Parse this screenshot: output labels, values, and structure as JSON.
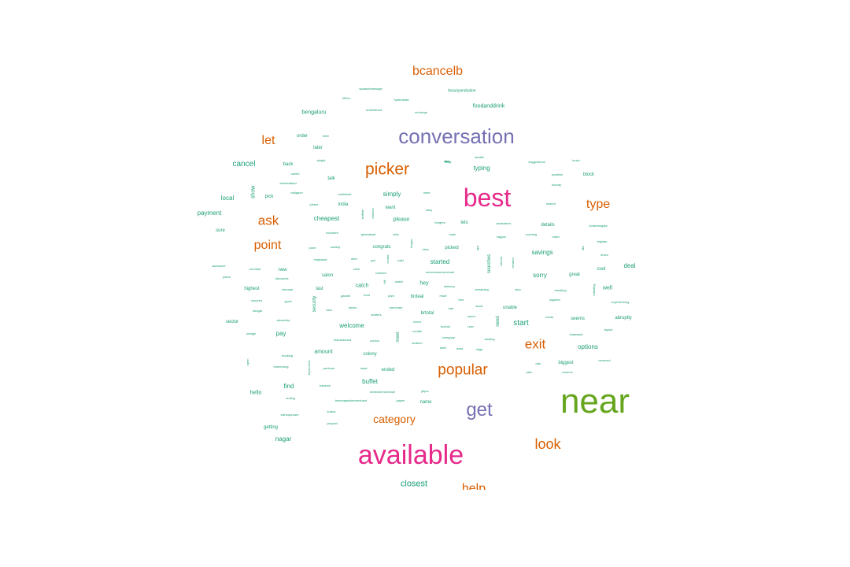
{
  "colors": {
    "teal": "#1b9e77",
    "orange": "#d95f02",
    "purple": "#7570b3",
    "magenta": "#e7298a",
    "green": "#66a61e",
    "gold": "#e6ab02"
  },
  "words": [
    {
      "text": "near",
      "color": "green"
    },
    {
      "text": "available",
      "color": "magenta"
    },
    {
      "text": "best",
      "color": "magenta"
    },
    {
      "text": "conversation",
      "color": "purple"
    },
    {
      "text": "get",
      "color": "purple"
    },
    {
      "text": "picker",
      "color": "orange"
    },
    {
      "text": "popular",
      "color": "orange"
    },
    {
      "text": "bcancelb",
      "color": "orange"
    },
    {
      "text": "category",
      "color": "orange"
    },
    {
      "text": "look",
      "color": "orange"
    },
    {
      "text": "help",
      "color": "orange"
    },
    {
      "text": "exit",
      "color": "orange"
    },
    {
      "text": "type",
      "color": "orange"
    },
    {
      "text": "ask",
      "color": "orange"
    },
    {
      "text": "point",
      "color": "orange"
    },
    {
      "text": "let",
      "color": "orange"
    },
    {
      "text": "closest",
      "color": "teal"
    },
    {
      "text": "cancel",
      "color": "teal"
    },
    {
      "text": "local",
      "color": "teal"
    },
    {
      "text": "payment",
      "color": "teal"
    },
    {
      "text": "sure",
      "color": "teal"
    },
    {
      "text": "cheapest",
      "color": "teal"
    },
    {
      "text": "simply",
      "color": "teal"
    },
    {
      "text": "typing",
      "color": "teal"
    },
    {
      "text": "savings",
      "color": "teal"
    },
    {
      "text": "sorry",
      "color": "teal"
    },
    {
      "text": "deal",
      "color": "teal"
    },
    {
      "text": "start",
      "color": "teal"
    },
    {
      "text": "options",
      "color": "teal"
    },
    {
      "text": "welcome",
      "color": "teal"
    },
    {
      "text": "buffet",
      "color": "teal"
    },
    {
      "text": "nagar",
      "color": "teal"
    },
    {
      "text": "find",
      "color": "teal"
    },
    {
      "text": "hello",
      "color": "teal"
    },
    {
      "text": "pay",
      "color": "teal"
    },
    {
      "text": "sector",
      "color": "teal"
    },
    {
      "text": "highest",
      "color": "teal"
    },
    {
      "text": "amount",
      "color": "teal"
    },
    {
      "text": "name",
      "color": "teal"
    },
    {
      "text": "ended",
      "color": "teal"
    },
    {
      "text": "colony",
      "color": "teal"
    },
    {
      "text": "started",
      "color": "teal"
    },
    {
      "text": "picked",
      "color": "teal"
    },
    {
      "text": "congrats",
      "color": "teal"
    },
    {
      "text": "please",
      "color": "teal"
    },
    {
      "text": "want",
      "color": "teal"
    },
    {
      "text": "details",
      "color": "teal"
    },
    {
      "text": "unable",
      "color": "teal"
    },
    {
      "text": "well",
      "color": "teal"
    },
    {
      "text": "cool",
      "color": "teal"
    },
    {
      "text": "great",
      "color": "teal"
    },
    {
      "text": "seems",
      "color": "teal"
    },
    {
      "text": "abruptly",
      "color": "teal"
    },
    {
      "text": "biggest",
      "color": "teal"
    },
    {
      "text": "block",
      "color": "teal"
    },
    {
      "text": "foodanddrink",
      "color": "teal"
    },
    {
      "text": "bengaluru",
      "color": "teal"
    },
    {
      "text": "order",
      "color": "teal"
    },
    {
      "text": "later",
      "color": "teal"
    },
    {
      "text": "back",
      "color": "teal"
    },
    {
      "text": "talk",
      "color": "teal"
    },
    {
      "text": "pick",
      "color": "teal"
    },
    {
      "text": "india",
      "color": "teal"
    },
    {
      "text": "salon",
      "color": "teal"
    },
    {
      "text": "new",
      "color": "teal"
    },
    {
      "text": "last",
      "color": "teal"
    },
    {
      "text": "catch",
      "color": "teal"
    },
    {
      "text": "hey",
      "color": "teal"
    },
    {
      "text": "brdeal",
      "color": "teal"
    },
    {
      "text": "brtotal",
      "color": "teal"
    },
    {
      "text": "lets",
      "color": "teal"
    },
    {
      "text": "getting",
      "color": "teal"
    },
    {
      "text": "beautyandsalon",
      "color": "teal"
    },
    {
      "text": "spaandmassage",
      "color": "teal"
    },
    {
      "text": "offers",
      "color": "teal"
    },
    {
      "text": "hyderabad",
      "color": "teal"
    },
    {
      "text": "understood",
      "color": "teal"
    },
    {
      "text": "recharge",
      "color": "teal"
    },
    {
      "text": "beer",
      "color": "teal"
    },
    {
      "text": "alright",
      "color": "teal"
    },
    {
      "text": "useful",
      "color": "teal"
    },
    {
      "text": "ahmedabad",
      "color": "teal"
    },
    {
      "text": "vadgaon",
      "color": "teal"
    },
    {
      "text": "cashback",
      "color": "teal"
    },
    {
      "text": "phase",
      "color": "teal"
    },
    {
      "text": "excellent",
      "color": "teal"
    },
    {
      "text": "ghaziabad",
      "color": "teal"
    },
    {
      "text": "pune",
      "color": "teal"
    },
    {
      "text": "society",
      "color": "teal"
    },
    {
      "text": "hinjewadi",
      "color": "teal"
    },
    {
      "text": "click",
      "color": "teal"
    },
    {
      "text": "awesome",
      "color": "teal"
    },
    {
      "text": "police",
      "color": "teal"
    },
    {
      "text": "mumbai",
      "color": "teal"
    },
    {
      "text": "discounts",
      "color": "teal"
    },
    {
      "text": "chennai",
      "color": "teal"
    },
    {
      "text": "voucher",
      "color": "teal"
    },
    {
      "text": "good",
      "color": "teal"
    },
    {
      "text": "dangal",
      "color": "teal"
    },
    {
      "text": "electricity",
      "color": "teal"
    },
    {
      "text": "outage",
      "color": "teal"
    },
    {
      "text": "booking",
      "color": "teal"
    },
    {
      "text": "redeeming",
      "color": "teal"
    },
    {
      "text": "ending",
      "color": "teal"
    },
    {
      "text": "vishnupuram",
      "color": "teal"
    },
    {
      "text": "balance",
      "color": "teal"
    },
    {
      "text": "kudos",
      "color": "teal"
    },
    {
      "text": "prepaid",
      "color": "teal"
    },
    {
      "text": "perfume",
      "color": "teal"
    },
    {
      "text": "maid",
      "color": "teal"
    },
    {
      "text": "maharashtra",
      "color": "teal"
    },
    {
      "text": "combo",
      "color": "teal"
    },
    {
      "text": "gandhi",
      "color": "teal"
    },
    {
      "text": "food",
      "color": "teal"
    },
    {
      "text": "park",
      "color": "teal"
    },
    {
      "text": "drinks",
      "color": "teal"
    },
    {
      "text": "view",
      "color": "teal"
    },
    {
      "text": "starters",
      "color": "teal"
    },
    {
      "text": "merchant",
      "color": "teal"
    },
    {
      "text": "drinksformerchant",
      "color": "teal"
    },
    {
      "text": "beveragesformerchant",
      "color": "teal"
    },
    {
      "text": "paytm",
      "color": "teal"
    },
    {
      "text": "jaipur",
      "color": "teal"
    },
    {
      "text": "servicesformerchant",
      "color": "teal"
    },
    {
      "text": "delivery",
      "color": "teal"
    },
    {
      "text": "reset",
      "color": "teal"
    },
    {
      "text": "hair",
      "color": "teal"
    },
    {
      "text": "event",
      "color": "teal"
    },
    {
      "text": "credits",
      "color": "teal"
    },
    {
      "text": "andheri",
      "color": "teal"
    },
    {
      "text": "budruk",
      "color": "teal"
    },
    {
      "text": "berrypay",
      "color": "teal"
    },
    {
      "text": "delhi",
      "color": "teal"
    },
    {
      "text": "west",
      "color": "teal"
    },
    {
      "text": "ridge",
      "color": "teal"
    },
    {
      "text": "starting",
      "color": "teal"
    },
    {
      "text": "seem",
      "color": "teal"
    },
    {
      "text": "stuck",
      "color": "teal"
    },
    {
      "text": "free",
      "color": "teal"
    },
    {
      "text": "remaining",
      "color": "teal"
    },
    {
      "text": "now",
      "color": "teal"
    },
    {
      "text": "tier",
      "color": "teal"
    },
    {
      "text": "burgers",
      "color": "teal"
    },
    {
      "text": "main",
      "color": "teal"
    },
    {
      "text": "tasty",
      "color": "teal"
    },
    {
      "text": "blue",
      "color": "teal"
    },
    {
      "text": "nagpur",
      "color": "teal"
    },
    {
      "text": "assistance",
      "color": "teal"
    },
    {
      "text": "evening",
      "color": "teal"
    },
    {
      "text": "malvi",
      "color": "teal"
    },
    {
      "text": "search",
      "color": "teal"
    },
    {
      "text": "koramangala",
      "color": "teal"
    },
    {
      "text": "register",
      "color": "teal"
    },
    {
      "text": "times",
      "color": "teal"
    },
    {
      "text": "mentling",
      "color": "teal"
    },
    {
      "text": "agaram",
      "color": "teal"
    },
    {
      "text": "also",
      "color": "teal"
    },
    {
      "text": "experiencing",
      "color": "teal"
    },
    {
      "text": "noida",
      "color": "teal"
    },
    {
      "text": "hinjewadi",
      "color": "teal"
    },
    {
      "text": "layout",
      "color": "teal"
    },
    {
      "text": "received",
      "color": "teal"
    },
    {
      "text": "reserve",
      "color": "teal"
    },
    {
      "text": "cafe",
      "color": "teal"
    },
    {
      "text": "ratu",
      "color": "teal"
    },
    {
      "text": "lazy",
      "color": "teal"
    },
    {
      "text": "stealth",
      "color": "teal"
    },
    {
      "text": "suggestions",
      "color": "teal"
    },
    {
      "text": "lunch",
      "color": "teal"
    },
    {
      "text": "pradesh",
      "color": "teal"
    },
    {
      "text": "hooray",
      "color": "teal"
    },
    {
      "text": "used",
      "color": "teal"
    },
    {
      "text": "easy",
      "color": "teal"
    },
    {
      "text": "paid",
      "color": "teal"
    },
    {
      "text": "reamed",
      "color": "teal"
    },
    {
      "text": "utter",
      "color": "teal"
    },
    {
      "text": "got",
      "color": "teal"
    },
    {
      "text": "show",
      "color": "teal"
    },
    {
      "text": "buffets",
      "color": "teal"
    },
    {
      "text": "chicken",
      "color": "teal"
    },
    {
      "text": "bill",
      "color": "teal"
    },
    {
      "text": "watch",
      "color": "teal"
    },
    {
      "text": "create",
      "color": "teal"
    },
    {
      "text": "burger",
      "color": "teal"
    },
    {
      "text": "hide",
      "color": "teal"
    },
    {
      "text": "spa",
      "color": "teal"
    },
    {
      "text": "searches",
      "color": "teal"
    },
    {
      "text": "current",
      "color": "teal"
    },
    {
      "text": "created",
      "color": "teal"
    },
    {
      "text": "need",
      "color": "teal"
    },
    {
      "text": "like",
      "color": "teal"
    },
    {
      "text": "initiating",
      "color": "teal"
    },
    {
      "text": "security",
      "color": "teal"
    },
    {
      "text": "meet",
      "color": "teal"
    },
    {
      "text": "brproceed",
      "color": "teal"
    },
    {
      "text": "open",
      "color": "teal"
    },
    {
      "text": "jamembar",
      "color": "teal"
    }
  ]
}
